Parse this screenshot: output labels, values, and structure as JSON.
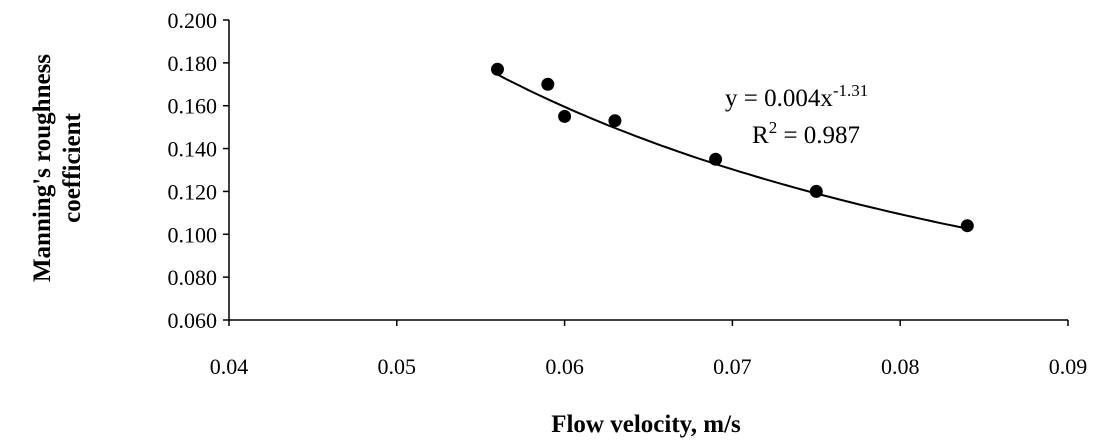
{
  "chart_data": {
    "type": "scatter",
    "title": "",
    "xlabel": "Flow velocity, m/s",
    "ylabel_lines": [
      "Manning's roughness",
      "coefficient"
    ],
    "xlim": [
      0.04,
      0.09
    ],
    "ylim": [
      0.06,
      0.2
    ],
    "x_ticks": [
      "0.04",
      "0.05",
      "0.06",
      "0.07",
      "0.08",
      "0.09"
    ],
    "y_ticks": [
      "0.060",
      "0.080",
      "0.100",
      "0.120",
      "0.140",
      "0.160",
      "0.180",
      "0.200"
    ],
    "grid": false,
    "legend": "none",
    "series": [
      {
        "x": [
          0.056,
          0.059,
          0.06,
          0.063,
          0.069,
          0.075,
          0.084
        ],
        "y": [
          0.177,
          0.17,
          0.155,
          0.153,
          0.135,
          0.12,
          0.104
        ],
        "color": "#000000"
      }
    ],
    "trendline": {
      "type": "power",
      "coefficient": 0.004,
      "exponent": -1.31,
      "x_range": [
        0.056,
        0.084
      ],
      "equation_base": "y = 0.004x",
      "equation_exponent": "-1.31",
      "r2_base": "R",
      "r2_sup": "2",
      "r2_value": " = 0.987"
    }
  }
}
